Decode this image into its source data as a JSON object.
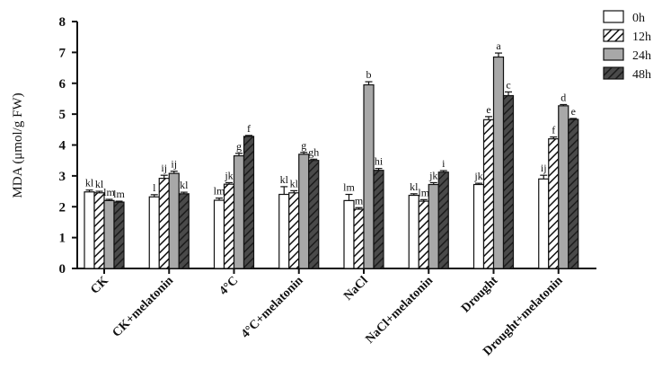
{
  "chart_data": {
    "type": "bar",
    "ylabel": "MDA (μmol/g FW)",
    "xlabel": "",
    "ylim": [
      0,
      8
    ],
    "yticks": [
      "0",
      "1",
      "2",
      "3",
      "4",
      "5",
      "6",
      "7",
      "8"
    ],
    "legend_position": "top-right",
    "categories": [
      "CK",
      "CK+melatonin",
      "4°C",
      "4°C+melatonin",
      "NaCl",
      "NaCl+melatonin",
      "Drought",
      "Drought+melatonin"
    ],
    "series": [
      {
        "name": "0h",
        "pattern": "white",
        "values": [
          2.48,
          2.32,
          2.21,
          2.4,
          2.2,
          2.37,
          2.72,
          2.9
        ],
        "errors": [
          0.06,
          0.07,
          0.07,
          0.25,
          0.2,
          0.05,
          0.04,
          0.12
        ],
        "labels": [
          "kl",
          "l",
          "lm",
          "kl",
          "lm",
          "kl",
          "jk",
          "ij"
        ]
      },
      {
        "name": "12h",
        "pattern": "hatch-white",
        "values": [
          2.45,
          2.92,
          2.73,
          2.45,
          1.92,
          2.18,
          4.82,
          4.2
        ],
        "errors": [
          0.05,
          0.1,
          0.05,
          0.07,
          0.05,
          0.05,
          0.1,
          0.06
        ],
        "labels": [
          "kl",
          "ij",
          "jk",
          "kl",
          "m",
          "lm",
          "e",
          "f"
        ]
      },
      {
        "name": "24h",
        "pattern": "gray",
        "values": [
          2.2,
          3.08,
          3.65,
          3.7,
          5.95,
          2.72,
          6.85,
          5.27
        ],
        "errors": [
          0.04,
          0.07,
          0.08,
          0.06,
          0.1,
          0.06,
          0.13,
          0.04
        ],
        "labels": [
          "lm",
          "ij",
          "g",
          "g",
          "b",
          "jk",
          "a",
          "d"
        ]
      },
      {
        "name": "48h",
        "pattern": "hatch-gray",
        "values": [
          2.15,
          2.42,
          4.28,
          3.5,
          3.18,
          3.12,
          5.6,
          4.83
        ],
        "errors": [
          0.03,
          0.05,
          0.03,
          0.04,
          0.06,
          0.05,
          0.12,
          0.03
        ],
        "labels": [
          "lm",
          "kl",
          "f",
          "gh",
          "hi",
          "i",
          "c",
          "e"
        ]
      }
    ]
  }
}
